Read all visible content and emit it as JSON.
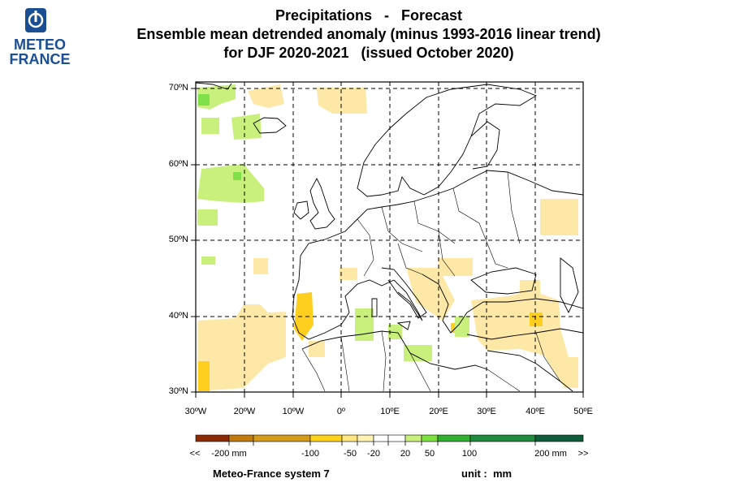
{
  "logo": {
    "line1": "METEO",
    "line2": "FRANCE"
  },
  "title": {
    "line1": "Precipitations   -   Forecast",
    "line2": "Ensemble mean detrended anomaly (minus 1993-2016 linear trend)",
    "line3": "for DJF 2020-2021   (issued October 2020)"
  },
  "map": {
    "lat_labels": [
      "70ºN",
      "60ºN",
      "50ºN",
      "40ºN",
      "30ºN"
    ],
    "lon_labels": [
      "30ºW",
      "20ºW",
      "10ºW",
      "0º",
      "10ºE",
      "20ºE",
      "30ºE",
      "40ºE",
      "50ºE"
    ],
    "anomaly_regions": [
      {
        "name": "north-atlantic-greenland",
        "category": "20 to 50"
      },
      {
        "name": "iberia",
        "category": "-100 to -50"
      },
      {
        "name": "north-africa-atlantic",
        "category": "-50 to -20"
      },
      {
        "name": "eastern-mediterranean",
        "category": "-50 to -20"
      },
      {
        "name": "central-mediterranean",
        "category": "20 to 50"
      }
    ]
  },
  "colorbar": {
    "colors": [
      "#8c2a04",
      "#c07a10",
      "#d69a1a",
      "#ffd21a",
      "#ffe680",
      "#fff2b3",
      "#ffffff",
      "#ffffff",
      "#c8f07a",
      "#7ae040",
      "#30b030",
      "#1e8a3c",
      "#0f5c3a"
    ],
    "labels": [
      "<<",
      "-200 mm",
      "-100",
      "-50",
      "-20",
      "20",
      "50",
      "100",
      "200 mm",
      ">>"
    ]
  },
  "footer": {
    "system": "Meteo-France system 7",
    "unit": "unit :  mm"
  }
}
